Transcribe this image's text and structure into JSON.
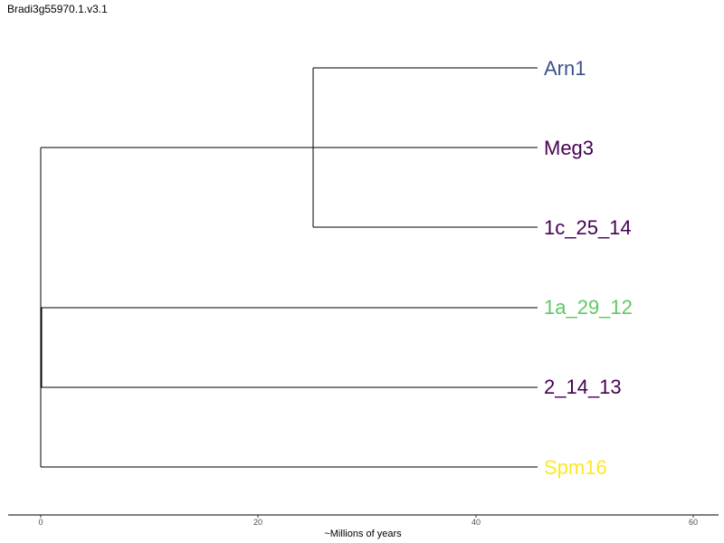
{
  "title": "Bradi3g55970.1.v3.1",
  "axis": {
    "label": "~Millions of years",
    "ticks": [
      "0",
      "20",
      "40",
      "60"
    ]
  },
  "tips": [
    {
      "label": "Arn1",
      "color": "#3b528b"
    },
    {
      "label": "Meg3",
      "color": "#440154"
    },
    {
      "label": "1c_25_14",
      "color": "#440154"
    },
    {
      "label": "1a_29_12",
      "color": "#5ec962"
    },
    {
      "label": "2_14_13",
      "color": "#440154"
    },
    {
      "label": "Spm16",
      "color": "#fde725"
    }
  ]
}
